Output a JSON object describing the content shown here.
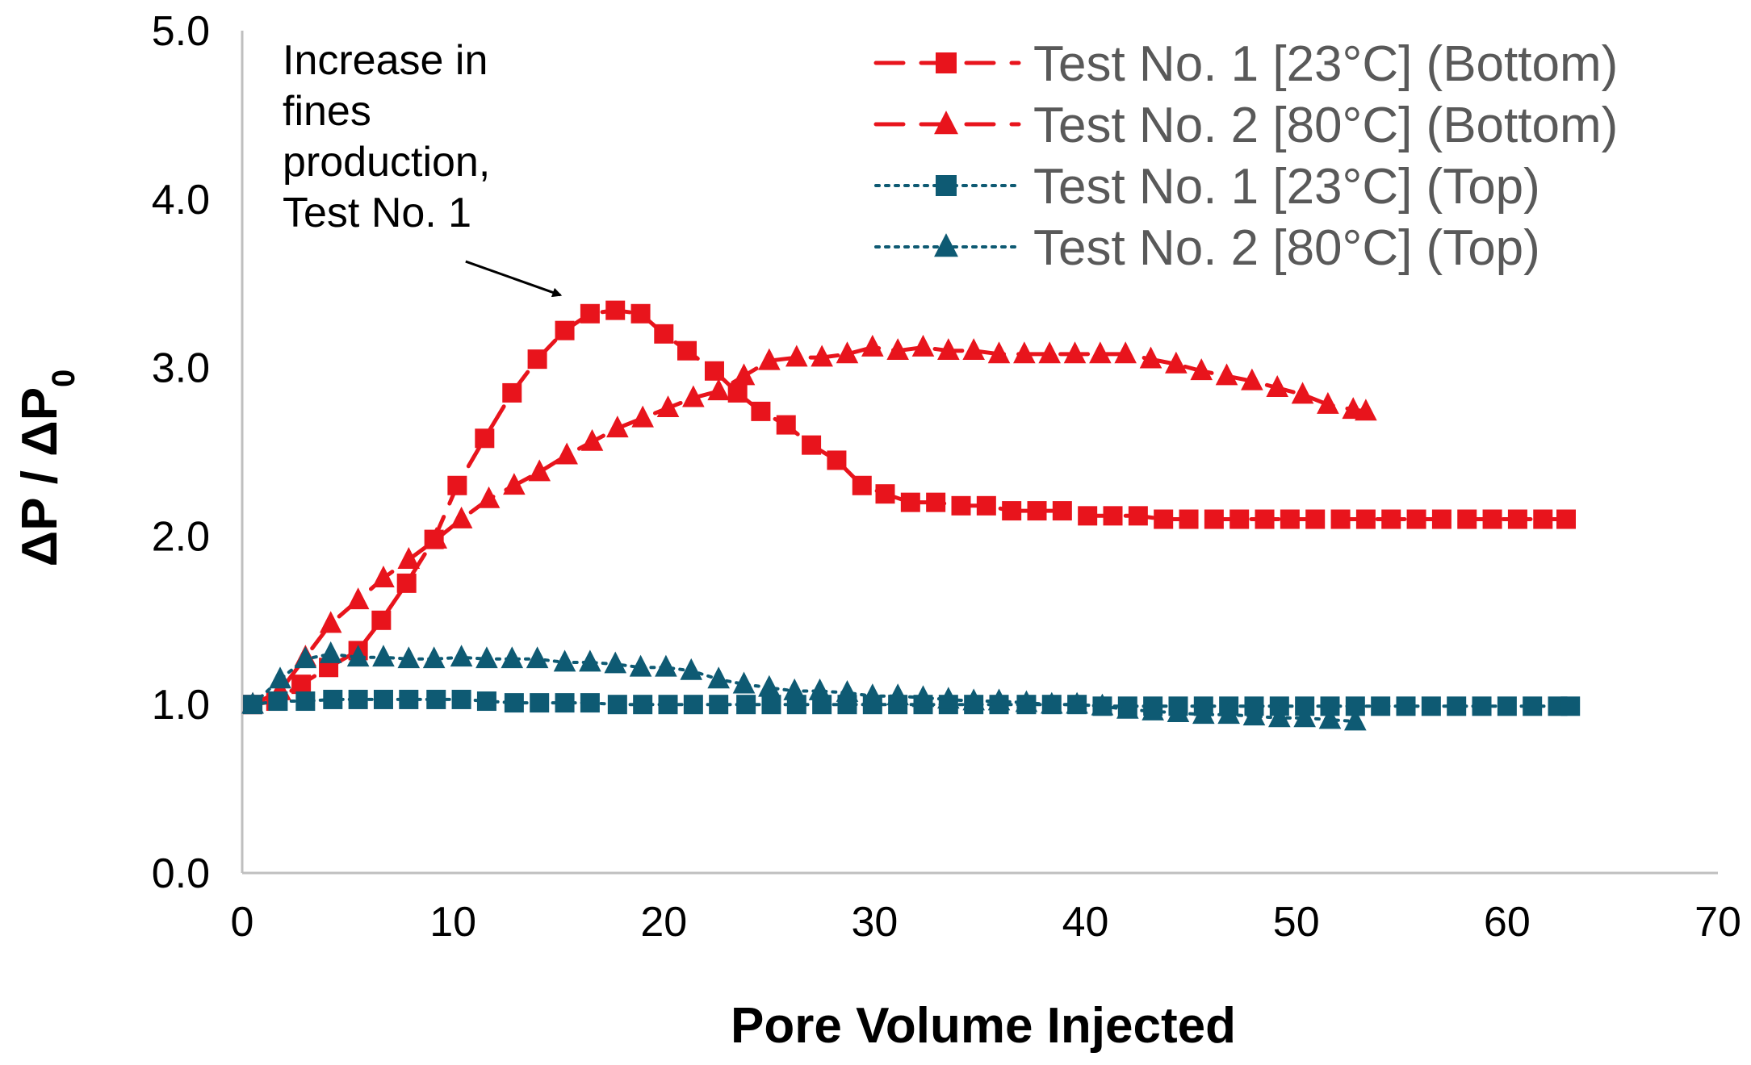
{
  "chart_data": {
    "type": "line",
    "title": "",
    "xlabel": "Pore Volume Injected",
    "ylabel_main": "ΔP / ΔP",
    "ylabel_sub": "0",
    "xlim": [
      0,
      70
    ],
    "ylim": [
      0.0,
      5.0
    ],
    "x_ticks": [
      "0",
      "10",
      "20",
      "30",
      "40",
      "50",
      "60",
      "70"
    ],
    "y_ticks": [
      "0.0",
      "1.0",
      "2.0",
      "3.0",
      "4.0",
      "5.0"
    ],
    "x_tick_values": [
      0,
      10,
      20,
      30,
      40,
      50,
      60,
      70
    ],
    "y_tick_values": [
      0,
      1,
      2,
      3,
      4,
      5
    ],
    "grid": false,
    "legend_position": "top-right",
    "annotation": {
      "lines": [
        "Increase in",
        "fines",
        "production,",
        "Test No. 1"
      ],
      "arrow_target": [
        15.1,
        3.43
      ],
      "arrow_start": [
        10.6,
        3.63
      ]
    },
    "series": [
      {
        "name": "Test No. 1 [23°C] (Bottom)",
        "color": "#E8141C",
        "marker": "square",
        "line": "dashed",
        "x": [
          0.5,
          1.6,
          2.8,
          4.1,
          5.5,
          6.6,
          7.8,
          9.1,
          10.2,
          11.5,
          12.8,
          14.0,
          15.3,
          16.5,
          17.7,
          18.9,
          20.0,
          21.1,
          22.4,
          23.5,
          24.6,
          25.8,
          27.0,
          28.2,
          29.4,
          30.5,
          31.7,
          32.9,
          34.1,
          35.3,
          36.5,
          37.7,
          38.9,
          40.1,
          41.3,
          42.5,
          43.7,
          44.9,
          46.1,
          47.3,
          48.5,
          49.7,
          50.9,
          52.1,
          53.3,
          54.5,
          55.7,
          56.9,
          58.1,
          59.3,
          60.5,
          61.7,
          62.8
        ],
        "y": [
          1.0,
          1.02,
          1.12,
          1.22,
          1.32,
          1.5,
          1.72,
          1.98,
          2.3,
          2.58,
          2.85,
          3.05,
          3.22,
          3.32,
          3.34,
          3.32,
          3.2,
          3.1,
          2.98,
          2.85,
          2.74,
          2.66,
          2.54,
          2.45,
          2.3,
          2.25,
          2.2,
          2.2,
          2.18,
          2.18,
          2.15,
          2.15,
          2.15,
          2.12,
          2.12,
          2.12,
          2.1,
          2.1,
          2.1,
          2.1,
          2.1,
          2.1,
          2.1,
          2.1,
          2.1,
          2.1,
          2.1,
          2.1,
          2.1,
          2.1,
          2.1,
          2.1,
          2.1
        ]
      },
      {
        "name": "Test No. 2 [80°C] (Bottom)",
        "color": "#E8141C",
        "marker": "triangle",
        "line": "dashed",
        "x": [
          0.5,
          1.8,
          3.0,
          4.2,
          5.5,
          6.7,
          7.9,
          9.2,
          10.4,
          11.7,
          12.9,
          14.1,
          15.4,
          16.6,
          17.8,
          19.0,
          20.2,
          21.4,
          22.6,
          23.8,
          25.0,
          26.3,
          27.5,
          28.7,
          29.9,
          31.1,
          32.3,
          33.5,
          34.7,
          35.9,
          37.1,
          38.3,
          39.5,
          40.7,
          41.9,
          43.1,
          44.3,
          45.5,
          46.7,
          47.9,
          49.1,
          50.3,
          51.5,
          52.7,
          53.3
        ],
        "y": [
          1.0,
          1.08,
          1.28,
          1.48,
          1.62,
          1.75,
          1.86,
          1.98,
          2.1,
          2.22,
          2.3,
          2.38,
          2.48,
          2.56,
          2.64,
          2.7,
          2.76,
          2.82,
          2.86,
          2.95,
          3.04,
          3.06,
          3.06,
          3.08,
          3.12,
          3.1,
          3.12,
          3.1,
          3.1,
          3.08,
          3.08,
          3.08,
          3.08,
          3.08,
          3.08,
          3.05,
          3.02,
          2.98,
          2.95,
          2.92,
          2.88,
          2.84,
          2.78,
          2.75,
          2.74
        ]
      },
      {
        "name": "Test No. 1 [23°C] (Top)",
        "color": "#0E5A73",
        "marker": "square",
        "line": "dotted",
        "x": [
          0.5,
          1.7,
          3.0,
          4.3,
          5.5,
          6.7,
          7.9,
          9.2,
          10.4,
          11.6,
          12.9,
          14.1,
          15.3,
          16.5,
          17.8,
          19.0,
          20.2,
          21.4,
          22.6,
          23.9,
          25.1,
          26.3,
          27.5,
          28.7,
          29.9,
          31.1,
          32.3,
          33.5,
          34.7,
          35.9,
          37.2,
          38.4,
          39.6,
          40.8,
          42.0,
          43.2,
          44.4,
          45.6,
          46.8,
          48.0,
          49.2,
          50.4,
          51.6,
          52.8,
          54.0,
          55.2,
          56.4,
          57.6,
          58.8,
          60.0,
          61.2,
          62.4,
          63.0
        ],
        "y": [
          1.0,
          1.02,
          1.02,
          1.03,
          1.03,
          1.03,
          1.03,
          1.03,
          1.03,
          1.02,
          1.01,
          1.01,
          1.01,
          1.01,
          1.0,
          1.0,
          1.0,
          1.0,
          1.0,
          1.0,
          1.0,
          1.0,
          1.0,
          1.0,
          1.0,
          1.0,
          1.0,
          1.0,
          1.0,
          1.0,
          1.0,
          1.0,
          1.0,
          0.99,
          0.99,
          0.99,
          0.99,
          0.99,
          0.99,
          0.99,
          0.99,
          0.99,
          0.99,
          0.99,
          0.99,
          0.99,
          0.99,
          0.99,
          0.99,
          0.99,
          0.99,
          0.99,
          0.99
        ]
      },
      {
        "name": "Test No. 2 [80°C] (Top)",
        "color": "#0E5A73",
        "marker": "triangle",
        "line": "dotted",
        "x": [
          0.5,
          1.8,
          3.0,
          4.2,
          5.5,
          6.7,
          7.9,
          9.1,
          10.4,
          11.6,
          12.8,
          14.0,
          15.3,
          16.5,
          17.7,
          18.9,
          20.1,
          21.3,
          22.6,
          23.8,
          25.0,
          26.2,
          27.4,
          28.7,
          29.9,
          31.1,
          32.3,
          33.5,
          34.7,
          35.9,
          37.2,
          38.4,
          39.6,
          40.8,
          42.0,
          43.2,
          44.4,
          45.6,
          46.8,
          48.0,
          49.2,
          50.4,
          51.6,
          52.8
        ],
        "y": [
          1.0,
          1.15,
          1.27,
          1.3,
          1.28,
          1.28,
          1.27,
          1.27,
          1.28,
          1.27,
          1.27,
          1.27,
          1.25,
          1.25,
          1.24,
          1.22,
          1.22,
          1.2,
          1.15,
          1.12,
          1.1,
          1.08,
          1.08,
          1.07,
          1.05,
          1.05,
          1.04,
          1.03,
          1.02,
          1.02,
          1.01,
          1.0,
          1.0,
          0.99,
          0.97,
          0.96,
          0.95,
          0.94,
          0.94,
          0.93,
          0.92,
          0.92,
          0.91,
          0.9
        ]
      }
    ]
  }
}
